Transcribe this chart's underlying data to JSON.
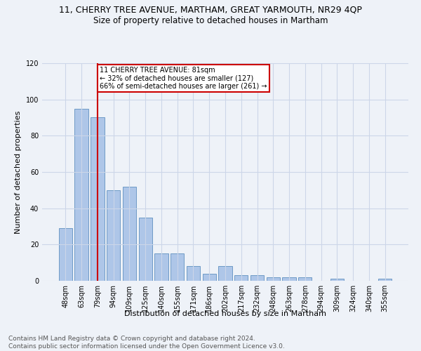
{
  "title": "11, CHERRY TREE AVENUE, MARTHAM, GREAT YARMOUTH, NR29 4QP",
  "subtitle": "Size of property relative to detached houses in Martham",
  "xlabel": "Distribution of detached houses by size in Martham",
  "ylabel": "Number of detached properties",
  "footer_line1": "Contains HM Land Registry data © Crown copyright and database right 2024.",
  "footer_line2": "Contains public sector information licensed under the Open Government Licence v3.0.",
  "categories": [
    "48sqm",
    "63sqm",
    "79sqm",
    "94sqm",
    "109sqm",
    "125sqm",
    "140sqm",
    "155sqm",
    "171sqm",
    "186sqm",
    "202sqm",
    "217sqm",
    "232sqm",
    "248sqm",
    "263sqm",
    "278sqm",
    "294sqm",
    "309sqm",
    "324sqm",
    "340sqm",
    "355sqm"
  ],
  "values": [
    29,
    95,
    90,
    50,
    52,
    35,
    15,
    15,
    8,
    4,
    8,
    3,
    3,
    2,
    2,
    2,
    0,
    1,
    0,
    0,
    1
  ],
  "bar_color": "#aec6e8",
  "bar_edge_color": "#6090c0",
  "property_bar_index": 2,
  "vline_color": "#cc0000",
  "annotation_text": "11 CHERRY TREE AVENUE: 81sqm\n← 32% of detached houses are smaller (127)\n66% of semi-detached houses are larger (261) →",
  "annotation_box_edge_color": "#cc0000",
  "ylim": [
    0,
    120
  ],
  "yticks": [
    0,
    20,
    40,
    60,
    80,
    100,
    120
  ],
  "grid_color": "#ccd6e8",
  "background_color": "#eef2f8",
  "title_fontsize": 9,
  "subtitle_fontsize": 8.5,
  "xlabel_fontsize": 8,
  "ylabel_fontsize": 8,
  "tick_fontsize": 7,
  "footer_fontsize": 6.5
}
